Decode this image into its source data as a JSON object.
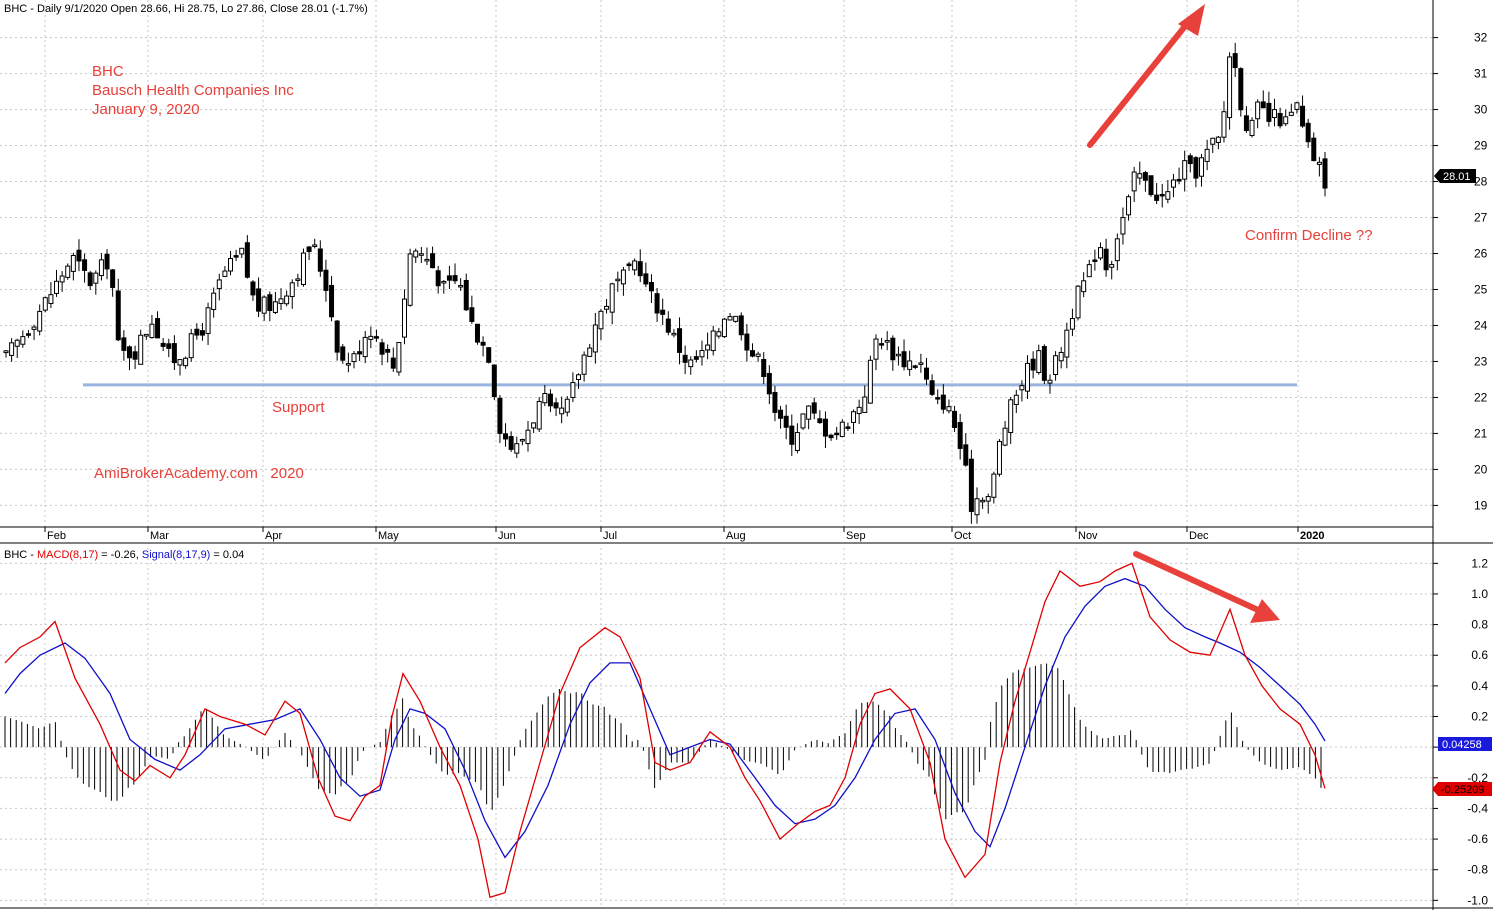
{
  "price_panel": {
    "header": "BHC - Daily 9/1/2020 Open 28.66, Hi 28.75, Lo 27.86, Close 28.01 (-1.7%)",
    "title_lines": [
      "BHC",
      "Bausch Health Companies Inc",
      "January 9, 2020"
    ],
    "support_label": "Support",
    "watermark": "AmiBrokerAcademy.com   2020",
    "confirm_label": "Confirm Decline ??",
    "last_price_badge": "28.01"
  },
  "macd_panel": {
    "header_prefix": "BHC - ",
    "macd_label": "MACD(8,17)",
    "macd_value_text": " = -0.26, ",
    "signal_label": "Signal(8,17,9)",
    "signal_value_text": " = 0.04",
    "signal_badge": "0.04258",
    "macd_badge": "-0.25209"
  },
  "colors": {
    "annotation": "#e8403a",
    "support_line": "#9ab4e0",
    "macd_line": "#e00000",
    "signal_line": "#1010c8",
    "grid": "#c8c8c8",
    "candle": "#000000"
  },
  "chart_data": [
    {
      "type": "candlestick",
      "ylim": [
        18.4,
        32.6
      ],
      "y_ticks": [
        19,
        20,
        21,
        22,
        23,
        24,
        25,
        26,
        27,
        28,
        29,
        30,
        31,
        32
      ],
      "x_labels": [
        "Feb",
        "Mar",
        "Apr",
        "May",
        "Jun",
        "Jul",
        "Aug",
        "Sep",
        "Oct",
        "Nov",
        "Dec",
        "2020"
      ],
      "support_level": 22.35,
      "close_path": [
        [
          0,
          23.1
        ],
        [
          10,
          24.0
        ],
        [
          20,
          25.0
        ],
        [
          28,
          25.9
        ],
        [
          36,
          25.2
        ],
        [
          44,
          25.9
        ],
        [
          48,
          23.2
        ],
        [
          55,
          23.3
        ],
        [
          62,
          24.2
        ],
        [
          70,
          23.0
        ],
        [
          76,
          23.3
        ],
        [
          84,
          24.0
        ],
        [
          92,
          25.4
        ],
        [
          100,
          26.0
        ],
        [
          106,
          24.5
        ],
        [
          114,
          24.6
        ],
        [
          122,
          25.3
        ],
        [
          130,
          26.3
        ],
        [
          136,
          25.1
        ],
        [
          142,
          23.0
        ],
        [
          148,
          23.1
        ],
        [
          154,
          24.0
        ],
        [
          160,
          23.4
        ],
        [
          165,
          22.8
        ],
        [
          172,
          26.2
        ],
        [
          180,
          25.8
        ],
        [
          186,
          25.0
        ],
        [
          192,
          25.3
        ],
        [
          198,
          24.0
        ],
        [
          205,
          23.2
        ],
        [
          210,
          21.1
        ],
        [
          216,
          20.5
        ],
        [
          222,
          21.2
        ],
        [
          228,
          22.0
        ],
        [
          232,
          21.4
        ],
        [
          238,
          21.7
        ],
        [
          244,
          22.9
        ],
        [
          250,
          24.0
        ],
        [
          258,
          25.1
        ],
        [
          264,
          25.4
        ],
        [
          268,
          25.9
        ],
        [
          272,
          25.0
        ],
        [
          278,
          24.4
        ],
        [
          284,
          23.6
        ],
        [
          290,
          22.9
        ],
        [
          296,
          23.2
        ],
        [
          302,
          23.8
        ],
        [
          306,
          24.5
        ],
        [
          312,
          24.0
        ],
        [
          316,
          23.3
        ],
        [
          322,
          22.8
        ],
        [
          328,
          21.3
        ],
        [
          334,
          20.9
        ],
        [
          340,
          21.7
        ],
        [
          346,
          21.2
        ],
        [
          352,
          21.0
        ],
        [
          358,
          21.4
        ],
        [
          364,
          22.0
        ],
        [
          370,
          23.8
        ],
        [
          376,
          23.3
        ],
        [
          382,
          23.0
        ],
        [
          388,
          23.0
        ],
        [
          394,
          21.8
        ],
        [
          398,
          21.9
        ],
        [
          402,
          21.4
        ],
        [
          406,
          20.4
        ],
        [
          410,
          19.0
        ],
        [
          414,
          19.4
        ],
        [
          418,
          19.2
        ],
        [
          422,
          20.8
        ],
        [
          426,
          21.6
        ],
        [
          430,
          22.3
        ],
        [
          434,
          22.8
        ],
        [
          438,
          23.2
        ],
        [
          442,
          22.5
        ],
        [
          446,
          23.0
        ],
        [
          450,
          23.8
        ],
        [
          454,
          24.7
        ],
        [
          460,
          25.5
        ],
        [
          464,
          26.4
        ],
        [
          468,
          25.5
        ],
        [
          472,
          26.6
        ],
        [
          476,
          27.3
        ],
        [
          480,
          28.3
        ],
        [
          484,
          27.9
        ],
        [
          488,
          27.7
        ],
        [
          492,
          27.5
        ],
        [
          496,
          28.0
        ],
        [
          500,
          28.4
        ],
        [
          504,
          28.2
        ],
        [
          508,
          28.6
        ],
        [
          512,
          29.0
        ],
        [
          516,
          29.2
        ],
        [
          520,
          31.9
        ],
        [
          524,
          30.3
        ],
        [
          528,
          29.3
        ],
        [
          532,
          30.1
        ],
        [
          536,
          29.7
        ],
        [
          540,
          29.8
        ],
        [
          544,
          29.6
        ],
        [
          548,
          30.1
        ],
        [
          552,
          29.0
        ],
        [
          556,
          28.6
        ],
        [
          560,
          28.01
        ]
      ]
    },
    {
      "type": "line",
      "title": "MACD(8,17) / Signal(8,17,9)",
      "ylim": [
        -1.05,
        1.3
      ],
      "y_ticks": [
        1.2,
        1.0,
        0.8,
        0.6,
        0.4,
        0.2,
        0.0,
        -0.2,
        -0.4,
        -0.6,
        -0.8,
        -1.0
      ],
      "series": [
        {
          "name": "MACD(8,17)",
          "points": [
            [
              5,
              0.55
            ],
            [
              20,
              0.65
            ],
            [
              40,
              0.72
            ],
            [
              55,
              0.82
            ],
            [
              75,
              0.45
            ],
            [
              100,
              0.15
            ],
            [
              120,
              -0.15
            ],
            [
              135,
              -0.22
            ],
            [
              150,
              -0.12
            ],
            [
              170,
              -0.2
            ],
            [
              185,
              -0.05
            ],
            [
              205,
              0.25
            ],
            [
              220,
              0.2
            ],
            [
              245,
              0.15
            ],
            [
              265,
              0.08
            ],
            [
              285,
              0.3
            ],
            [
              300,
              0.22
            ],
            [
              318,
              -0.2
            ],
            [
              335,
              -0.45
            ],
            [
              350,
              -0.48
            ],
            [
              365,
              -0.32
            ],
            [
              380,
              -0.25
            ],
            [
              392,
              0.2
            ],
            [
              403,
              0.48
            ],
            [
              420,
              0.3
            ],
            [
              440,
              0.0
            ],
            [
              460,
              -0.25
            ],
            [
              478,
              -0.6
            ],
            [
              490,
              -0.98
            ],
            [
              505,
              -0.95
            ],
            [
              520,
              -0.55
            ],
            [
              540,
              -0.1
            ],
            [
              560,
              0.35
            ],
            [
              580,
              0.65
            ],
            [
              605,
              0.78
            ],
            [
              620,
              0.72
            ],
            [
              640,
              0.45
            ],
            [
              655,
              -0.1
            ],
            [
              670,
              -0.15
            ],
            [
              690,
              -0.1
            ],
            [
              710,
              0.1
            ],
            [
              730,
              0.0
            ],
            [
              745,
              -0.2
            ],
            [
              760,
              -0.35
            ],
            [
              780,
              -0.6
            ],
            [
              798,
              -0.5
            ],
            [
              815,
              -0.42
            ],
            [
              830,
              -0.38
            ],
            [
              845,
              -0.2
            ],
            [
              860,
              0.15
            ],
            [
              875,
              0.35
            ],
            [
              890,
              0.38
            ],
            [
              910,
              0.25
            ],
            [
              930,
              -0.1
            ],
            [
              945,
              -0.6
            ],
            [
              965,
              -0.85
            ],
            [
              985,
              -0.7
            ],
            [
              1000,
              -0.1
            ],
            [
              1015,
              0.3
            ],
            [
              1030,
              0.62
            ],
            [
              1045,
              0.95
            ],
            [
              1060,
              1.15
            ],
            [
              1080,
              1.05
            ],
            [
              1100,
              1.08
            ],
            [
              1115,
              1.15
            ],
            [
              1132,
              1.2
            ],
            [
              1150,
              0.85
            ],
            [
              1170,
              0.7
            ],
            [
              1190,
              0.62
            ],
            [
              1210,
              0.6
            ],
            [
              1230,
              0.9
            ],
            [
              1245,
              0.6
            ],
            [
              1262,
              0.4
            ],
            [
              1280,
              0.25
            ],
            [
              1300,
              0.15
            ],
            [
              1315,
              -0.05
            ],
            [
              1325,
              -0.27
            ]
          ]
        },
        {
          "name": "Signal(8,17,9)",
          "points": [
            [
              5,
              0.35
            ],
            [
              20,
              0.48
            ],
            [
              40,
              0.6
            ],
            [
              65,
              0.68
            ],
            [
              85,
              0.58
            ],
            [
              110,
              0.35
            ],
            [
              130,
              0.05
            ],
            [
              155,
              -0.08
            ],
            [
              180,
              -0.15
            ],
            [
              200,
              -0.05
            ],
            [
              225,
              0.12
            ],
            [
              250,
              0.15
            ],
            [
              275,
              0.18
            ],
            [
              300,
              0.25
            ],
            [
              320,
              0.05
            ],
            [
              340,
              -0.2
            ],
            [
              360,
              -0.32
            ],
            [
              380,
              -0.28
            ],
            [
              395,
              0.05
            ],
            [
              410,
              0.25
            ],
            [
              425,
              0.22
            ],
            [
              445,
              0.12
            ],
            [
              465,
              -0.15
            ],
            [
              485,
              -0.48
            ],
            [
              505,
              -0.72
            ],
            [
              525,
              -0.55
            ],
            [
              548,
              -0.25
            ],
            [
              570,
              0.15
            ],
            [
              590,
              0.42
            ],
            [
              610,
              0.55
            ],
            [
              630,
              0.55
            ],
            [
              650,
              0.25
            ],
            [
              670,
              -0.05
            ],
            [
              690,
              0.0
            ],
            [
              710,
              0.05
            ],
            [
              730,
              0.02
            ],
            [
              755,
              -0.2
            ],
            [
              775,
              -0.38
            ],
            [
              795,
              -0.5
            ],
            [
              815,
              -0.47
            ],
            [
              835,
              -0.38
            ],
            [
              855,
              -0.2
            ],
            [
              875,
              0.05
            ],
            [
              895,
              0.22
            ],
            [
              915,
              0.25
            ],
            [
              935,
              0.05
            ],
            [
              955,
              -0.3
            ],
            [
              975,
              -0.55
            ],
            [
              990,
              -0.65
            ],
            [
              1005,
              -0.4
            ],
            [
              1025,
              0.0
            ],
            [
              1045,
              0.4
            ],
            [
              1065,
              0.72
            ],
            [
              1085,
              0.92
            ],
            [
              1105,
              1.05
            ],
            [
              1125,
              1.1
            ],
            [
              1145,
              1.05
            ],
            [
              1165,
              0.9
            ],
            [
              1185,
              0.78
            ],
            [
              1205,
              0.72
            ],
            [
              1220,
              0.68
            ],
            [
              1240,
              0.62
            ],
            [
              1260,
              0.52
            ],
            [
              1280,
              0.4
            ],
            [
              1300,
              0.28
            ],
            [
              1315,
              0.15
            ],
            [
              1325,
              0.04
            ]
          ]
        }
      ]
    }
  ]
}
